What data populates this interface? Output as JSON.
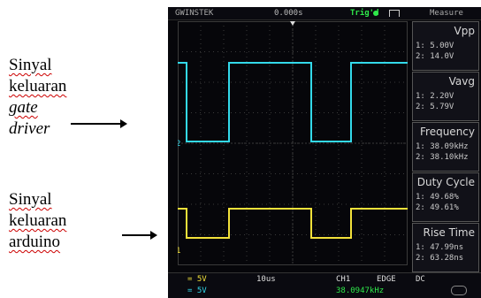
{
  "annotations": {
    "top": {
      "line1": "Sinyal",
      "line2": "keluaran",
      "line3": "gate",
      "line4": "driver"
    },
    "bottom": {
      "line1": "Sinyal",
      "line2": "keluaran",
      "line3": "arduino"
    }
  },
  "scope": {
    "brand": "GWINSTEK",
    "time_position": "0.000s",
    "trigger_status": "Trig'd",
    "measure_title": "Measure",
    "measurements": [
      {
        "name": "Vpp",
        "ch1": "1: 5.00V",
        "ch2": "2: 14.0V"
      },
      {
        "name": "Vavg",
        "ch1": "1: 2.20V",
        "ch2": "2: 5.79V"
      },
      {
        "name": "Frequency",
        "ch1": "1: 38.09kHz",
        "ch2": "2: 38.10kHz"
      },
      {
        "name": "Duty Cycle",
        "ch1": "1: 49.68%",
        "ch2": "2: 49.61%"
      },
      {
        "name": "Rise Time",
        "ch1": "1: 47.99ns",
        "ch2": "2: 63.28ns"
      }
    ],
    "status": {
      "ch1_scale": "= 5V",
      "ch2_scale": "= 5V",
      "timebase": "10us",
      "source": "CH1",
      "trigger_type": "EDGE",
      "coupling": "DC",
      "trigger_freq": "38.0947kHz"
    },
    "markers": {
      "ch2": "2",
      "ch1": "1"
    },
    "colors": {
      "ch1": "#f2e13a",
      "ch2": "#33d9ea",
      "grid": "#3a3a3a",
      "trigger": "#2fe84a"
    }
  }
}
